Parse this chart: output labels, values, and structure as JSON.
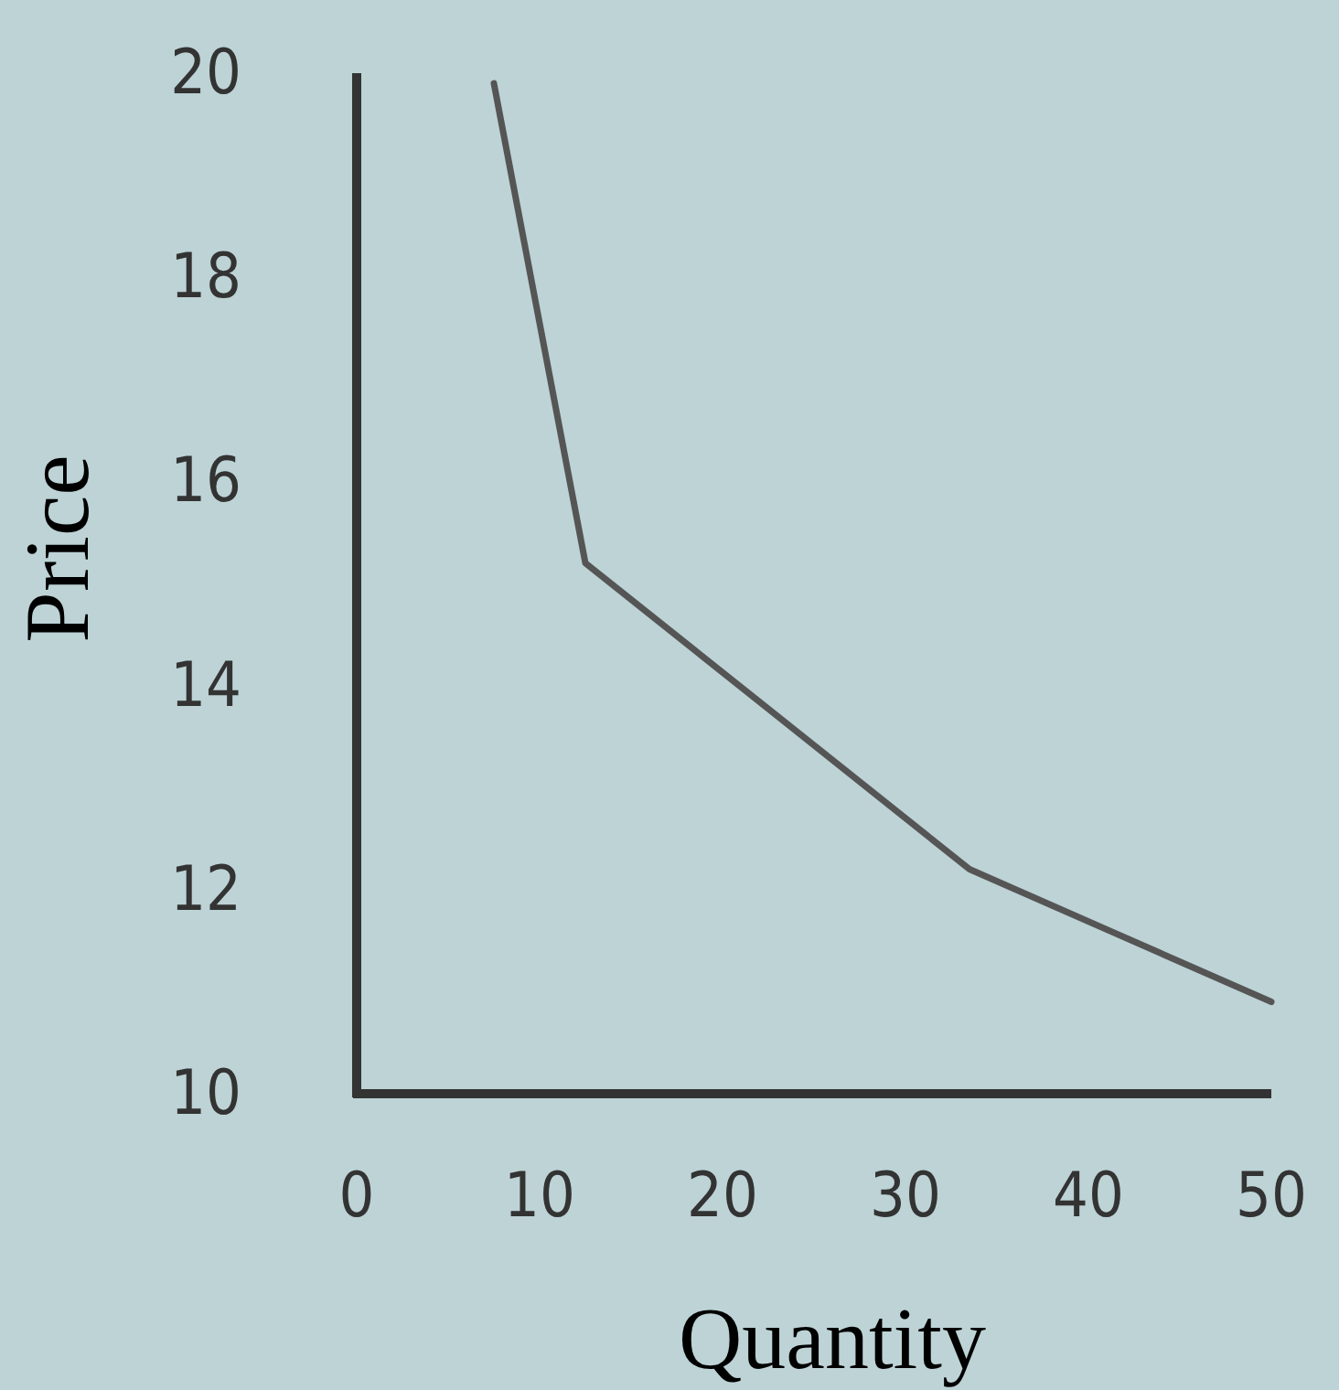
{
  "chart_data": {
    "type": "line",
    "xlabel": "Quantity",
    "ylabel": "Price",
    "x": [
      7.5,
      12.5,
      33.5,
      50
    ],
    "values": [
      19.9,
      15.2,
      12.2,
      10.9
    ],
    "color": "#555555",
    "marker": "none",
    "line_style": "solid",
    "grid": false,
    "xlim": [
      0,
      50
    ],
    "xticks": [
      0,
      10,
      20,
      30,
      40,
      50
    ],
    "ylim": [
      10,
      20
    ],
    "yticks": [
      10,
      12,
      14,
      16,
      18,
      20
    ]
  }
}
